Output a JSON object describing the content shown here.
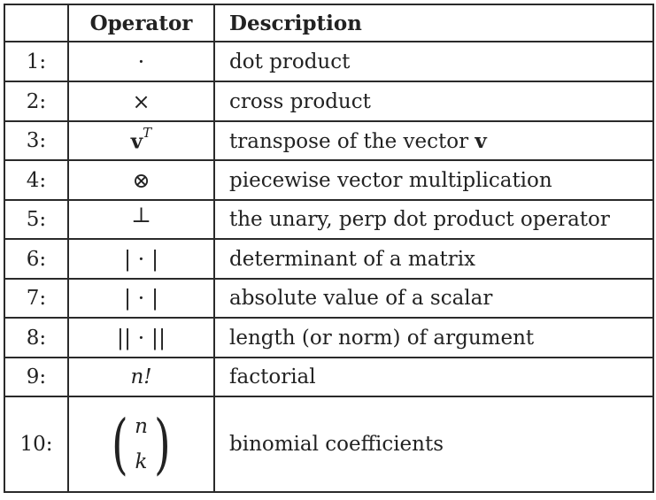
{
  "header": {
    "col1": "",
    "col2": "Operator",
    "col3": "Description"
  },
  "rows": [
    {
      "num": "1:",
      "op": "·",
      "desc": "dot product"
    },
    {
      "num": "2:",
      "op": "×",
      "desc": "cross product"
    },
    {
      "num": "3:",
      "op_base": "v",
      "op_sup": "T",
      "desc_prefix": "transpose of the vector",
      "desc_bold": "v"
    },
    {
      "num": "4:",
      "op": "⊗",
      "desc": "piecewise vector multiplication"
    },
    {
      "num": "5:",
      "op": "⊥",
      "desc": "the unary, perp dot product operator"
    },
    {
      "num": "6:",
      "op": "| · |",
      "desc": "determinant of a matrix"
    },
    {
      "num": "7:",
      "op": "| · |",
      "desc": "absolute value of a scalar"
    },
    {
      "num": "8:",
      "op": "|| · ||",
      "desc": "length (or norm) of argument"
    },
    {
      "num": "9:",
      "op": "n!",
      "desc": "factorial"
    },
    {
      "num": "10:",
      "op_top": "n",
      "op_bottom": "k",
      "desc": "binomial coefficients"
    }
  ]
}
